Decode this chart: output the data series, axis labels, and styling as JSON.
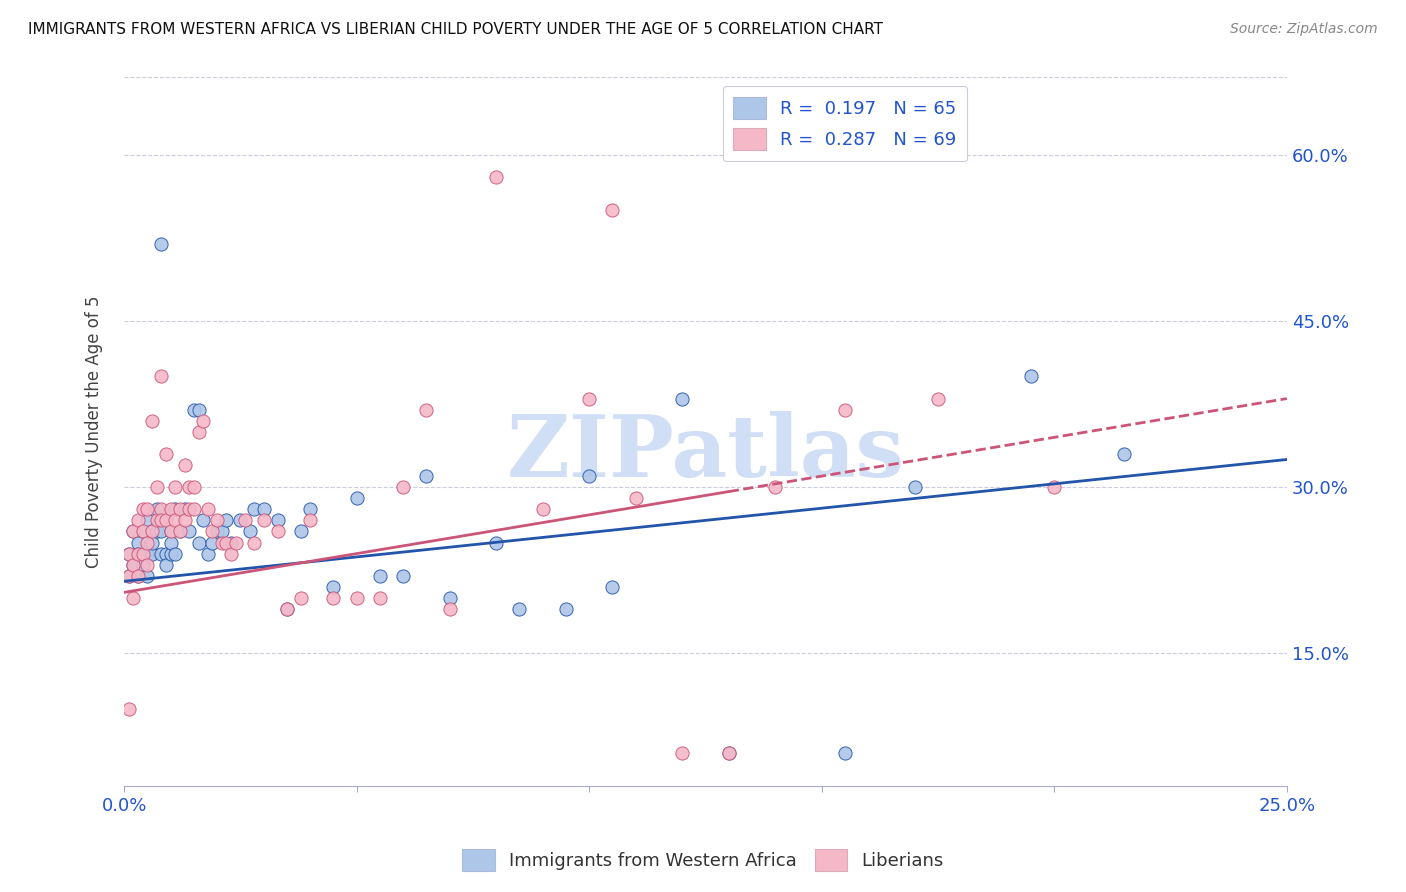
{
  "title": "IMMIGRANTS FROM WESTERN AFRICA VS LIBERIAN CHILD POVERTY UNDER THE AGE OF 5 CORRELATION CHART",
  "source": "Source: ZipAtlas.com",
  "ylabel": "Child Poverty Under the Age of 5",
  "xlim": [
    0.0,
    0.25
  ],
  "ylim": [
    0.03,
    0.67
  ],
  "blue_R": 0.197,
  "blue_N": 65,
  "pink_R": 0.287,
  "pink_N": 69,
  "blue_color": "#aec6e8",
  "pink_color": "#f4b8c8",
  "blue_line_color": "#2255aa",
  "pink_line_color": "#cc5577",
  "watermark": "ZIPatlas",
  "watermark_color": "#d0dff5",
  "blue_scatter_x": [
    0.001,
    0.001,
    0.002,
    0.002,
    0.003,
    0.003,
    0.003,
    0.004,
    0.004,
    0.005,
    0.005,
    0.005,
    0.006,
    0.006,
    0.006,
    0.007,
    0.007,
    0.008,
    0.008,
    0.008,
    0.009,
    0.009,
    0.01,
    0.01,
    0.01,
    0.011,
    0.011,
    0.012,
    0.013,
    0.014,
    0.015,
    0.016,
    0.016,
    0.017,
    0.018,
    0.019,
    0.02,
    0.021,
    0.022,
    0.023,
    0.025,
    0.027,
    0.028,
    0.03,
    0.033,
    0.035,
    0.038,
    0.04,
    0.045,
    0.05,
    0.055,
    0.06,
    0.065,
    0.07,
    0.08,
    0.085,
    0.095,
    0.1,
    0.105,
    0.12,
    0.13,
    0.155,
    0.17,
    0.195,
    0.215
  ],
  "blue_scatter_y": [
    0.24,
    0.22,
    0.26,
    0.23,
    0.25,
    0.22,
    0.24,
    0.26,
    0.23,
    0.27,
    0.24,
    0.22,
    0.26,
    0.24,
    0.25,
    0.28,
    0.26,
    0.52,
    0.24,
    0.26,
    0.24,
    0.23,
    0.26,
    0.24,
    0.25,
    0.28,
    0.24,
    0.26,
    0.28,
    0.26,
    0.37,
    0.37,
    0.25,
    0.27,
    0.24,
    0.25,
    0.26,
    0.26,
    0.27,
    0.25,
    0.27,
    0.26,
    0.28,
    0.28,
    0.27,
    0.19,
    0.26,
    0.28,
    0.21,
    0.29,
    0.22,
    0.22,
    0.31,
    0.2,
    0.25,
    0.19,
    0.19,
    0.31,
    0.21,
    0.38,
    0.06,
    0.06,
    0.3,
    0.4,
    0.33
  ],
  "pink_scatter_x": [
    0.001,
    0.001,
    0.001,
    0.002,
    0.002,
    0.002,
    0.003,
    0.003,
    0.003,
    0.004,
    0.004,
    0.004,
    0.005,
    0.005,
    0.005,
    0.006,
    0.006,
    0.007,
    0.007,
    0.008,
    0.008,
    0.008,
    0.009,
    0.009,
    0.01,
    0.01,
    0.011,
    0.011,
    0.012,
    0.012,
    0.013,
    0.013,
    0.014,
    0.014,
    0.015,
    0.015,
    0.016,
    0.017,
    0.018,
    0.019,
    0.02,
    0.021,
    0.022,
    0.023,
    0.024,
    0.026,
    0.028,
    0.03,
    0.033,
    0.035,
    0.038,
    0.04,
    0.045,
    0.05,
    0.055,
    0.06,
    0.065,
    0.07,
    0.08,
    0.09,
    0.1,
    0.105,
    0.11,
    0.12,
    0.13,
    0.14,
    0.155,
    0.175,
    0.2
  ],
  "pink_scatter_y": [
    0.24,
    0.22,
    0.1,
    0.26,
    0.23,
    0.2,
    0.27,
    0.24,
    0.22,
    0.28,
    0.26,
    0.24,
    0.28,
    0.25,
    0.23,
    0.36,
    0.26,
    0.3,
    0.27,
    0.4,
    0.28,
    0.27,
    0.33,
    0.27,
    0.28,
    0.26,
    0.3,
    0.27,
    0.28,
    0.26,
    0.32,
    0.27,
    0.3,
    0.28,
    0.3,
    0.28,
    0.35,
    0.36,
    0.28,
    0.26,
    0.27,
    0.25,
    0.25,
    0.24,
    0.25,
    0.27,
    0.25,
    0.27,
    0.26,
    0.19,
    0.2,
    0.27,
    0.2,
    0.2,
    0.2,
    0.3,
    0.37,
    0.19,
    0.58,
    0.28,
    0.38,
    0.55,
    0.29,
    0.06,
    0.06,
    0.3,
    0.37,
    0.38,
    0.3
  ],
  "blue_trend_x0": 0.0,
  "blue_trend_y0": 0.215,
  "blue_trend_x1": 0.25,
  "blue_trend_y1": 0.325,
  "pink_trend_x0": 0.0,
  "pink_trend_y0": 0.205,
  "pink_trend_x1_solid": 0.13,
  "pink_trend_x1": 0.25,
  "pink_trend_y1": 0.38
}
